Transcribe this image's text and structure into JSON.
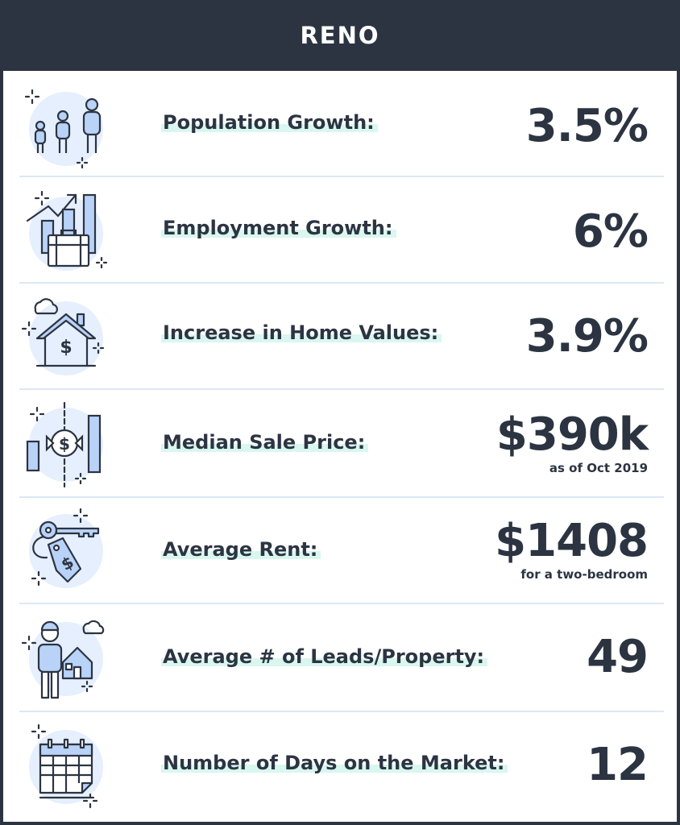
{
  "header": {
    "title": "RENO"
  },
  "stats": [
    {
      "label": "Population Growth:",
      "value": "3.5%",
      "note": "",
      "icon": "family-icon"
    },
    {
      "label": "Employment Growth:",
      "value": "6%",
      "note": "",
      "icon": "briefcase-growth-icon"
    },
    {
      "label": "Increase in Home Values:",
      "value": "3.9%",
      "note": "",
      "icon": "house-dollar-icon"
    },
    {
      "label": "Median Sale Price:",
      "value": "$390k",
      "note": "as of Oct 2019",
      "icon": "sale-price-chart-icon"
    },
    {
      "label": "Average Rent:",
      "value": "$1408",
      "note": "for a two-bedroom",
      "icon": "key-tag-icon"
    },
    {
      "label": "Average # of Leads/Property:",
      "value": "49",
      "note": "",
      "icon": "person-house-icon"
    },
    {
      "label": "Number of Days on the Market:",
      "value": "12",
      "note": "",
      "icon": "calendar-icon"
    }
  ],
  "colors": {
    "header_bg": "#2c3442",
    "text": "#2c3442",
    "icon_circle": "#e6effd",
    "icon_fill": "#b9d2f7",
    "label_highlight": "#d9f7ef",
    "divider": "#dbe8f5"
  }
}
